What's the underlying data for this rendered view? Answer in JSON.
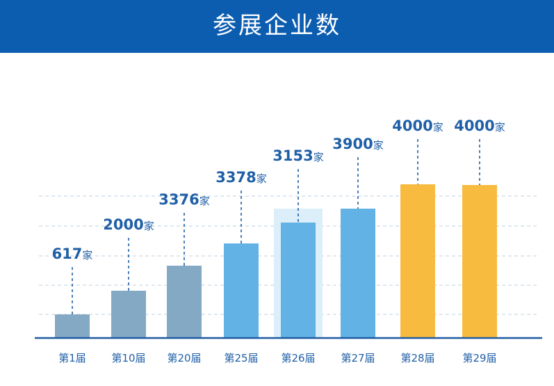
{
  "title": "参展企业数",
  "colors": {
    "header": "#0c5db0",
    "gray_blue": "#84a9c4",
    "light_blue": "#62b2e6",
    "yellow": "#f7bb40",
    "highlight_bg": "#dbeef9",
    "text": "#1f5fa6",
    "grid": "#c9d9e6",
    "axis": "#1e5aa0"
  },
  "chart_data": {
    "type": "bar",
    "categories": [
      "第1届",
      "第10届",
      "第20届",
      "第25届",
      "第26届",
      "第27届",
      "第28届",
      "第29届"
    ],
    "values": [
      617,
      2000,
      3376,
      3378,
      3153,
      3900,
      4000,
      4000
    ],
    "labels": [
      "617",
      "2000",
      "3376",
      "3378",
      "3153",
      "3900",
      "4000",
      "4000"
    ],
    "unit": "家",
    "bar_colors": [
      "gray_blue",
      "gray_blue",
      "gray_blue",
      "light_blue",
      "light_blue",
      "light_blue",
      "yellow",
      "yellow"
    ],
    "highlighted_category": "第26届",
    "grid": true
  }
}
